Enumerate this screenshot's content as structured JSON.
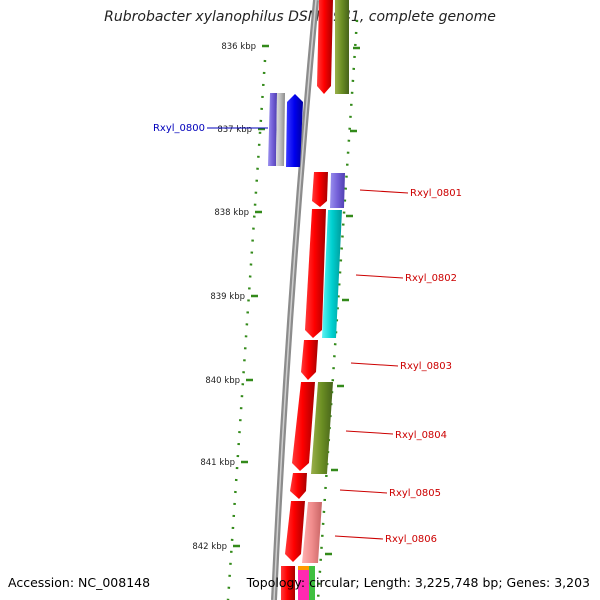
{
  "title": "Rubrobacter xylanophilus DSM 9941, complete genome",
  "footer": {
    "accession": "Accession: NC_008148",
    "summary": "Topology: circular; Length: 3,225,748 bp; Genes: 3,203"
  },
  "ticks": [
    "836 kbp",
    "837 kbp",
    "838 kbp",
    "839 kbp",
    "840 kbp",
    "841 kbp",
    "842 kbp"
  ],
  "colors": {
    "forward_gene": "#ee0000",
    "label_red": "#cc0000",
    "label_blue": "#0000bb",
    "tick_green": "#338a1a",
    "backbone": "#8c8c8c"
  },
  "genes": [
    {
      "label": "Rxyl_0800",
      "strand": "reverse",
      "color": "#0000ee"
    },
    {
      "label": "Rxyl_0801",
      "strand": "forward",
      "color": "#ee0000"
    },
    {
      "label": "Rxyl_0802",
      "strand": "forward",
      "color": "#ee0000"
    },
    {
      "label": "Rxyl_0803",
      "strand": "forward",
      "color": "#ee0000"
    },
    {
      "label": "Rxyl_0804",
      "strand": "forward",
      "color": "#ee0000"
    },
    {
      "label": "Rxyl_0805",
      "strand": "forward",
      "color": "#ee0000"
    },
    {
      "label": "Rxyl_0806",
      "strand": "forward",
      "color": "#ee0000"
    }
  ]
}
